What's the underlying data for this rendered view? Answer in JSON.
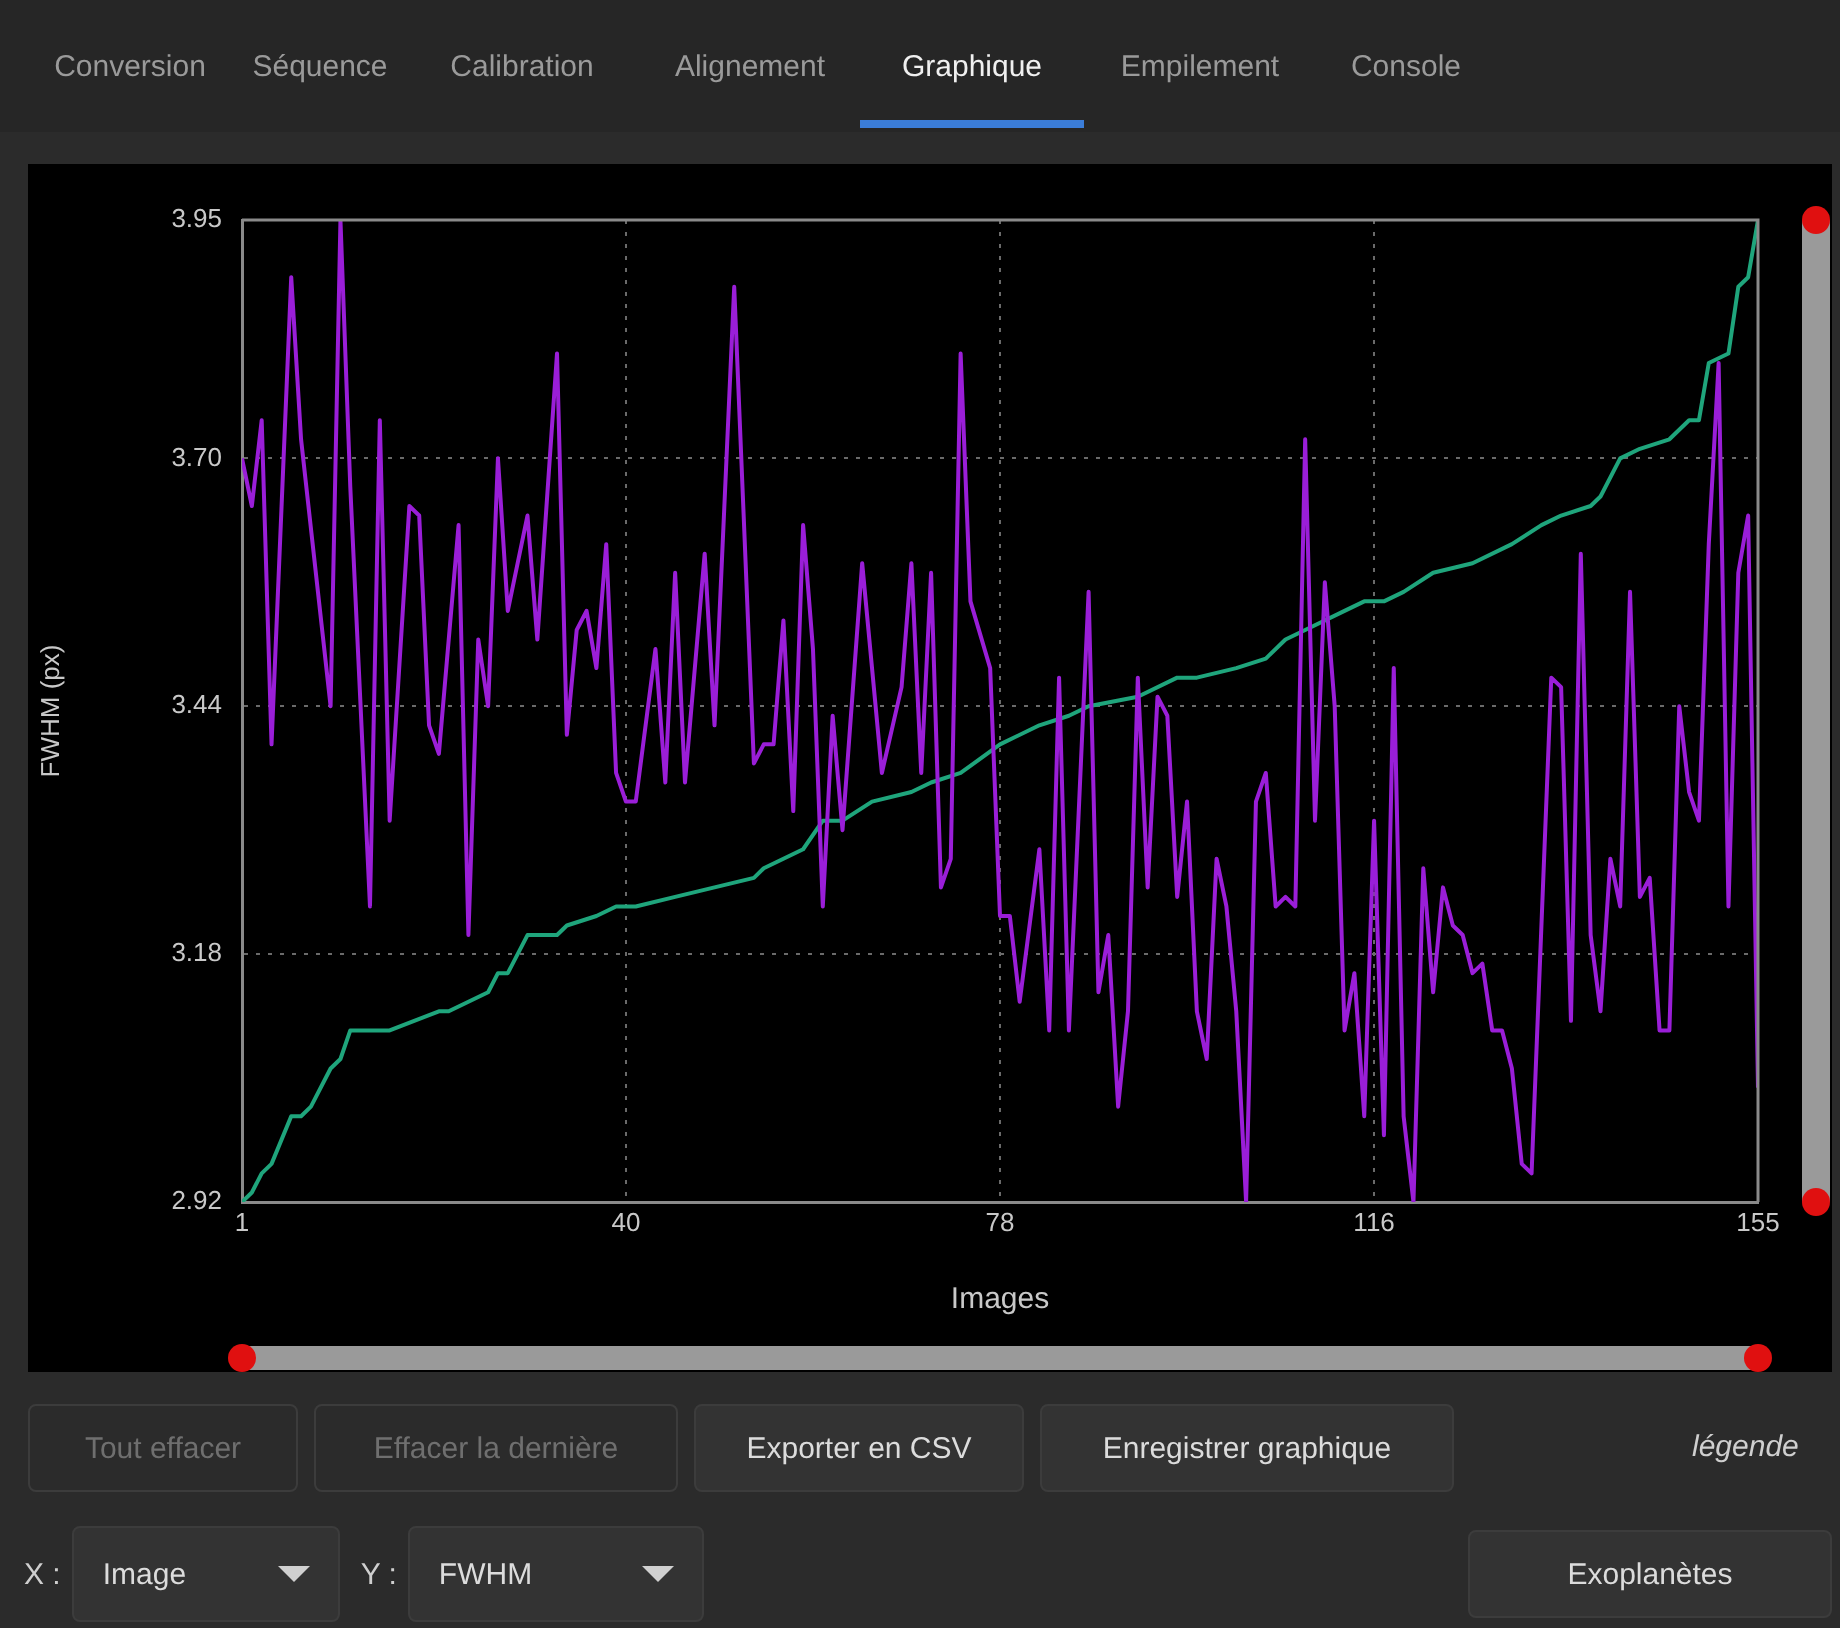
{
  "chart_data": {
    "type": "line",
    "xlabel": "Images",
    "ylabel": "FWHM (px)",
    "xlim": [
      1,
      155
    ],
    "xticks": [
      1,
      40,
      78,
      116,
      155
    ],
    "ylim": [
      2.92,
      3.95
    ],
    "yticks": [
      2.92,
      3.18,
      3.44,
      {
        "value": 3.7,
        "label": "3.70"
      },
      3.95
    ],
    "grid": true,
    "legend": false,
    "marker": "none",
    "line_style": "solid",
    "series": [
      {
        "color": "#9a1ed8",
        "x": [
          1,
          2,
          3,
          4,
          6,
          7,
          10,
          11,
          12,
          14,
          15,
          16,
          18,
          19,
          20,
          21,
          23,
          24,
          25,
          26,
          27,
          28,
          30,
          31,
          33,
          34,
          35,
          36,
          37,
          38,
          39,
          40,
          41,
          43,
          44,
          45,
          46,
          48,
          49,
          51,
          53,
          54,
          55,
          56,
          57,
          58,
          59,
          60,
          61,
          62,
          64,
          66,
          68,
          69,
          70,
          71,
          72,
          73,
          74,
          75,
          77,
          78,
          79,
          80,
          82,
          83,
          84,
          85,
          87,
          88,
          89,
          90,
          91,
          92,
          93,
          94,
          95,
          96,
          97,
          98,
          99,
          100,
          101,
          102,
          103,
          104,
          105,
          106,
          107,
          108,
          109,
          110,
          111,
          112,
          113,
          114,
          115,
          116,
          117,
          118,
          119,
          120,
          121,
          122,
          123,
          124,
          125,
          126,
          127,
          128,
          129,
          130,
          131,
          132,
          134,
          135,
          136,
          137,
          138,
          139,
          140,
          141,
          142,
          143,
          144,
          145,
          146,
          147,
          148,
          149,
          150,
          151,
          152,
          153,
          154,
          155
        ],
        "values": [
          3.7,
          3.65,
          3.74,
          3.4,
          3.89,
          3.72,
          3.44,
          3.95,
          3.67,
          3.23,
          3.74,
          3.32,
          3.65,
          3.64,
          3.42,
          3.39,
          3.63,
          3.2,
          3.51,
          3.44,
          3.7,
          3.54,
          3.64,
          3.51,
          3.81,
          3.41,
          3.52,
          3.54,
          3.48,
          3.61,
          3.37,
          3.34,
          3.34,
          3.5,
          3.36,
          3.58,
          3.36,
          3.6,
          3.42,
          3.88,
          3.38,
          3.4,
          3.4,
          3.53,
          3.33,
          3.63,
          3.5,
          3.23,
          3.43,
          3.31,
          3.59,
          3.37,
          3.46,
          3.59,
          3.37,
          3.58,
          3.25,
          3.28,
          3.81,
          3.55,
          3.48,
          3.22,
          3.22,
          3.13,
          3.29,
          3.1,
          3.47,
          3.1,
          3.56,
          3.14,
          3.2,
          3.02,
          3.12,
          3.47,
          3.25,
          3.45,
          3.43,
          3.24,
          3.34,
          3.12,
          3.07,
          3.28,
          3.23,
          3.12,
          2.92,
          3.34,
          3.37,
          3.23,
          3.24,
          3.23,
          3.72,
          3.32,
          3.57,
          3.44,
          3.1,
          3.16,
          3.01,
          3.32,
          2.99,
          3.48,
          3.01,
          2.92,
          3.27,
          3.14,
          3.25,
          3.21,
          3.2,
          3.16,
          3.17,
          3.1,
          3.1,
          3.06,
          2.96,
          2.95,
          3.47,
          3.46,
          3.11,
          3.6,
          3.2,
          3.12,
          3.28,
          3.23,
          3.56,
          3.24,
          3.26,
          3.1,
          3.1,
          3.44,
          3.35,
          3.32,
          3.61,
          3.8,
          3.23,
          3.58,
          3.64,
          3.04
        ]
      },
      {
        "color": "#1fa57c",
        "x": [
          1,
          2,
          3,
          4,
          6,
          7,
          8,
          10,
          11,
          12,
          16,
          21,
          22,
          26,
          27,
          28,
          30,
          33,
          34,
          37,
          39,
          41,
          45,
          49,
          53,
          54,
          56,
          58,
          60,
          62,
          65,
          69,
          71,
          74,
          78,
          82,
          85,
          87,
          92,
          96,
          98,
          102,
          105,
          107,
          109,
          113,
          115,
          117,
          119,
          122,
          126,
          130,
          133,
          135,
          138,
          139,
          141,
          143,
          146,
          148,
          149,
          150,
          152,
          153,
          154,
          155
        ],
        "values": [
          2.92,
          2.93,
          2.95,
          2.96,
          3.01,
          3.01,
          3.02,
          3.06,
          3.07,
          3.1,
          3.1,
          3.12,
          3.12,
          3.14,
          3.16,
          3.16,
          3.2,
          3.2,
          3.21,
          3.22,
          3.23,
          3.23,
          3.24,
          3.25,
          3.26,
          3.27,
          3.28,
          3.29,
          3.32,
          3.32,
          3.34,
          3.35,
          3.36,
          3.37,
          3.4,
          3.42,
          3.43,
          3.44,
          3.45,
          3.47,
          3.47,
          3.48,
          3.49,
          3.51,
          3.52,
          3.54,
          3.55,
          3.55,
          3.56,
          3.58,
          3.59,
          3.61,
          3.63,
          3.64,
          3.65,
          3.66,
          3.7,
          3.71,
          3.72,
          3.74,
          3.74,
          3.8,
          3.81,
          3.88,
          3.89,
          3.95
        ]
      }
    ],
    "annotations": [
      "Conversion",
      "Séquence",
      "Calibration",
      "Alignement",
      "Graphique",
      "Empilement",
      "Console",
      "Tout effacer",
      "Effacer la dernière",
      "Exporter en CSV",
      "Enregistrer graphique",
      "légende",
      "X :",
      "Image",
      "Y :",
      "FWHM",
      "Exoplanètes"
    ]
  }
}
